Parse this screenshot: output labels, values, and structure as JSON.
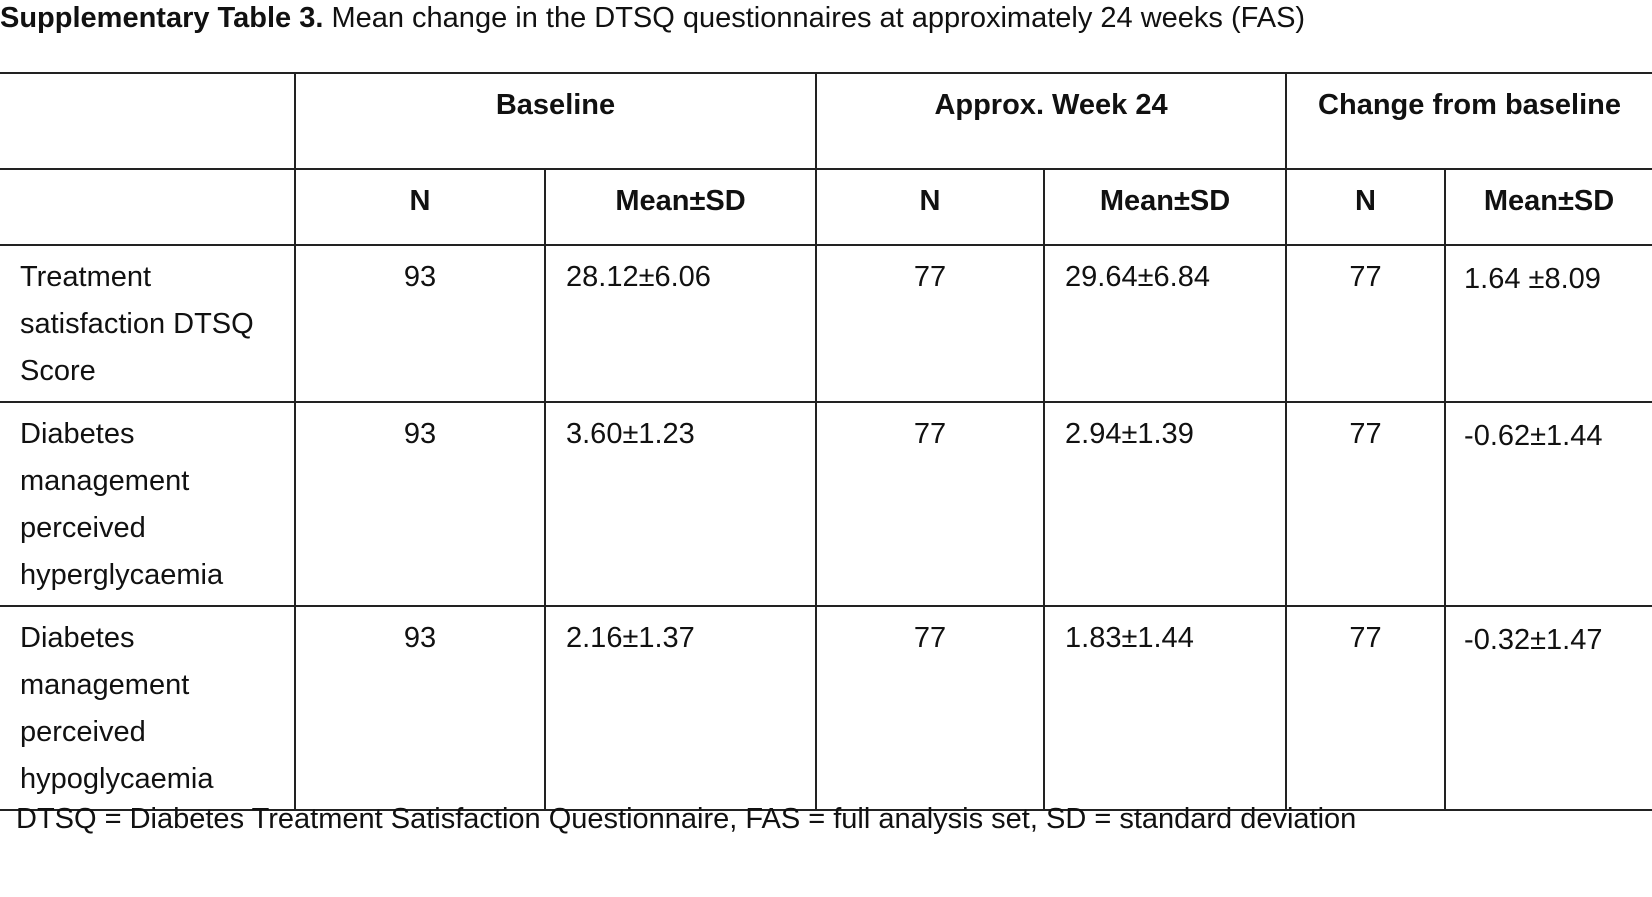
{
  "title": {
    "label": "Supplementary Table 3.",
    "text": "Mean change in the DTSQ questionnaires at approximately 24 weeks (FAS)"
  },
  "table": {
    "header_groups": [
      "Baseline",
      "Approx. Week 24",
      "Change from baseline"
    ],
    "subheaders": [
      "N",
      "Mean±SD",
      "N",
      "Mean±SD",
      "N",
      "Mean±SD"
    ],
    "rows": [
      [
        "Treatment satisfaction DTSQ Score",
        "93",
        "28.12±6.06",
        "77",
        "29.64±6.84",
        "77",
        "1.64 ±8.09"
      ],
      [
        "Diabetes management perceived hyperglycaemia",
        "93",
        "3.60±1.23",
        "77",
        "2.94±1.39",
        "77",
        "-0.62±1.44"
      ],
      [
        "Diabetes management perceived hypoglycaemia",
        "93",
        "2.16±1.37",
        "77",
        "1.83±1.44",
        "77",
        "-0.32±1.47"
      ]
    ]
  },
  "footnote": "DTSQ = Diabetes Treatment Satisfaction Questionnaire, FAS = full analysis set, SD = standard deviation"
}
